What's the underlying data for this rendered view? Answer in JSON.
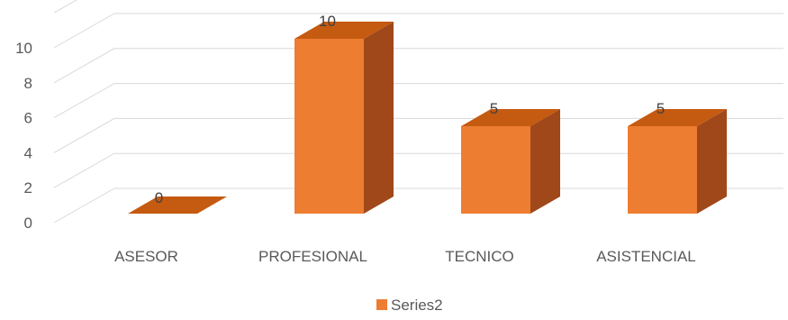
{
  "chart_data": {
    "type": "bar",
    "categories": [
      "ASESOR",
      "PROFESIONAL",
      "TECNICO",
      "ASISTENCIAL"
    ],
    "series": [
      {
        "name": "Series2",
        "values": [
          0,
          10,
          5,
          5
        ]
      }
    ],
    "data_labels": [
      "0",
      "10",
      "5",
      "5"
    ],
    "yticks": [
      "0",
      "2",
      "4",
      "6",
      "8",
      "10"
    ],
    "ylim": [
      0,
      12
    ],
    "grid": true,
    "legend": "bottom",
    "colors": {
      "front": "#ED7D31",
      "top": "#C55A11",
      "side": "#A0481A",
      "grid": "#D9D9D9"
    }
  }
}
